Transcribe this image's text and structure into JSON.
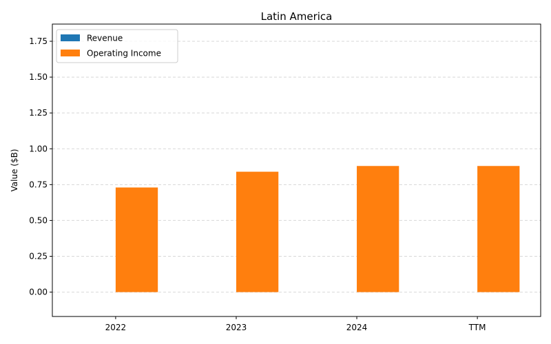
{
  "chart_data": {
    "type": "bar",
    "title": "Latin America",
    "xlabel": "",
    "ylabel": "Value ($B)",
    "categories": [
      "2022",
      "2023",
      "2024",
      "TTM"
    ],
    "series": [
      {
        "name": "Revenue",
        "color": "#1f77b4",
        "values": [
          0,
          0,
          0,
          0
        ]
      },
      {
        "name": "Operating Income",
        "color": "#ff7f0e",
        "values": [
          0.73,
          0.84,
          0.88,
          0.88
        ]
      }
    ],
    "ylim": [
      -0.17,
      1.87
    ],
    "yticks": [
      "0.00",
      "0.25",
      "0.50",
      "0.75",
      "1.00",
      "1.25",
      "1.50",
      "1.75"
    ],
    "grid": "y-dashed",
    "legend_position": "top-left"
  }
}
